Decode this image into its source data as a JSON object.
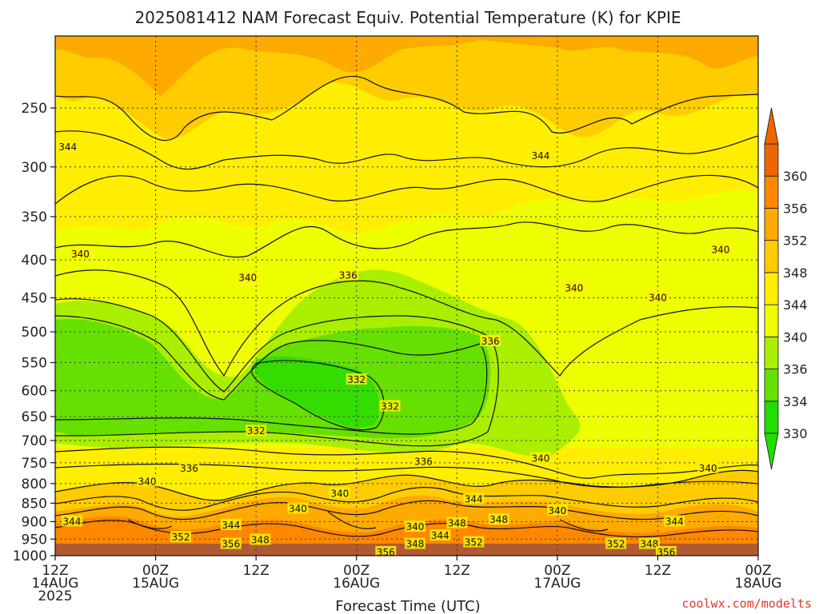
{
  "chart_data": {
    "type": "heatmap",
    "title": "2025081412 NAM Forecast Equiv. Potential Temperature (K) for KPIE",
    "xlabel": "Forecast Time (UTC)",
    "ylabel": "",
    "y_axis": {
      "scale": "log",
      "range": [
        1000,
        200
      ],
      "inverted": true,
      "ticks": [
        250,
        300,
        350,
        400,
        450,
        500,
        550,
        600,
        650,
        700,
        750,
        800,
        850,
        900,
        950,
        1000
      ]
    },
    "x_axis": {
      "range_hours": [
        0,
        84
      ],
      "ticks": [
        {
          "hour": 0,
          "lines": [
            "12Z",
            "14AUG",
            "2025"
          ]
        },
        {
          "hour": 12,
          "lines": [
            "00Z",
            "15AUG"
          ]
        },
        {
          "hour": 24,
          "lines": [
            "12Z"
          ]
        },
        {
          "hour": 36,
          "lines": [
            "00Z",
            "16AUG"
          ]
        },
        {
          "hour": 48,
          "lines": [
            "12Z"
          ]
        },
        {
          "hour": 60,
          "lines": [
            "00Z",
            "17AUG"
          ]
        },
        {
          "hour": 72,
          "lines": [
            "12Z"
          ]
        },
        {
          "hour": 84,
          "lines": [
            "00Z",
            "18AUG"
          ]
        }
      ]
    },
    "grid": true,
    "colorbar": {
      "placement": "right",
      "labels": [
        330,
        334,
        336,
        340,
        344,
        348,
        352,
        356,
        360
      ],
      "colors": [
        "#22dd00",
        "#66e000",
        "#aaee00",
        "#eeff00",
        "#ffee00",
        "#ffcc00",
        "#ffaa00",
        "#ff8800",
        "#ee6600"
      ]
    },
    "contour_labels": [
      {
        "value": "344",
        "hour": 1.5,
        "p": 282
      },
      {
        "value": "344",
        "hour": 58,
        "p": 290
      },
      {
        "value": "340",
        "hour": 3,
        "p": 393
      },
      {
        "value": "340",
        "hour": 23,
        "p": 423
      },
      {
        "value": "336",
        "hour": 35,
        "p": 420
      },
      {
        "value": "340",
        "hour": 62,
        "p": 437
      },
      {
        "value": "340",
        "hour": 72,
        "p": 450
      },
      {
        "value": "340",
        "hour": 79.5,
        "p": 388
      },
      {
        "value": "336",
        "hour": 52,
        "p": 515
      },
      {
        "value": "332",
        "hour": 36,
        "p": 580
      },
      {
        "value": "332",
        "hour": 40,
        "p": 630
      },
      {
        "value": "332",
        "hour": 24,
        "p": 680
      },
      {
        "value": "336",
        "hour": 16,
        "p": 763
      },
      {
        "value": "336",
        "hour": 44,
        "p": 748
      },
      {
        "value": "340",
        "hour": 58,
        "p": 740
      },
      {
        "value": "340",
        "hour": 78,
        "p": 763
      },
      {
        "value": "340",
        "hour": 11,
        "p": 795
      },
      {
        "value": "340",
        "hour": 34,
        "p": 825
      },
      {
        "value": "340",
        "hour": 29,
        "p": 865
      },
      {
        "value": "344",
        "hour": 50,
        "p": 840
      },
      {
        "value": "340",
        "hour": 60,
        "p": 870
      },
      {
        "value": "344",
        "hour": 2,
        "p": 900
      },
      {
        "value": "344",
        "hour": 21,
        "p": 910
      },
      {
        "value": "348",
        "hour": 53,
        "p": 895
      },
      {
        "value": "348",
        "hour": 48,
        "p": 905
      },
      {
        "value": "340",
        "hour": 43,
        "p": 915
      },
      {
        "value": "344",
        "hour": 46,
        "p": 940
      },
      {
        "value": "344",
        "hour": 74,
        "p": 900
      },
      {
        "value": "352",
        "hour": 15,
        "p": 945
      },
      {
        "value": "348",
        "hour": 24.5,
        "p": 953
      },
      {
        "value": "356",
        "hour": 21,
        "p": 965
      },
      {
        "value": "348",
        "hour": 43,
        "p": 965
      },
      {
        "value": "352",
        "hour": 50,
        "p": 960
      },
      {
        "value": "352",
        "hour": 67,
        "p": 965
      },
      {
        "value": "348",
        "hour": 71,
        "p": 965
      },
      {
        "value": "356",
        "hour": 39.5,
        "p": 990
      },
      {
        "value": "356",
        "hour": 73,
        "p": 990
      }
    ]
  },
  "credit": "coolwx.com/modelts"
}
